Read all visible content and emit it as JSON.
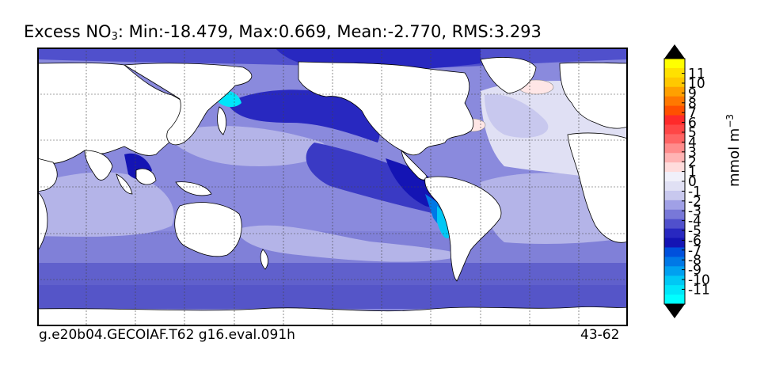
{
  "title": {
    "variable": "Excess NO",
    "subscript": "3",
    "stats": ": Min:-18.479, Max:0.669, Mean:-2.770, RMS:3.293"
  },
  "footer": {
    "case": "g.e20b04.GECOIAF.T62 g16.eval.091h",
    "years": "43-62"
  },
  "colorbar": {
    "units": "mmol m",
    "units_exp": "−3",
    "ticks": [
      "11",
      "10",
      "9",
      "8",
      "7",
      "6",
      "5",
      "4",
      "3",
      "2",
      "1",
      "0",
      "-1",
      "-2",
      "-3",
      "-4",
      "-5",
      "-6",
      "-7",
      "-8",
      "-9",
      "-10",
      "-11"
    ],
    "colors": [
      "#ffff00",
      "#ffe100",
      "#ffc800",
      "#ffa000",
      "#ff7800",
      "#ff5000",
      "#ff2a2a",
      "#ff4646",
      "#ff6464",
      "#ff8c8c",
      "#ffb4b4",
      "#ffdcdc",
      "#f0f0fa",
      "#e0e0f4",
      "#c8c8ee",
      "#a0a0e6",
      "#7878d8",
      "#5050cc",
      "#2828c0",
      "#1414b4",
      "#0050dc",
      "#0078e6",
      "#00a0f0",
      "#00c8f5",
      "#00e6fa",
      "#00ffff"
    ],
    "extend_top": "#000000",
    "extend_bottom": "#000000"
  },
  "map": {
    "projection": "cylindrical equidistant, centered Pacific",
    "land_color": "#ffffff",
    "ocean_base_color": "#8888dd",
    "gridlines": "dotted"
  }
}
